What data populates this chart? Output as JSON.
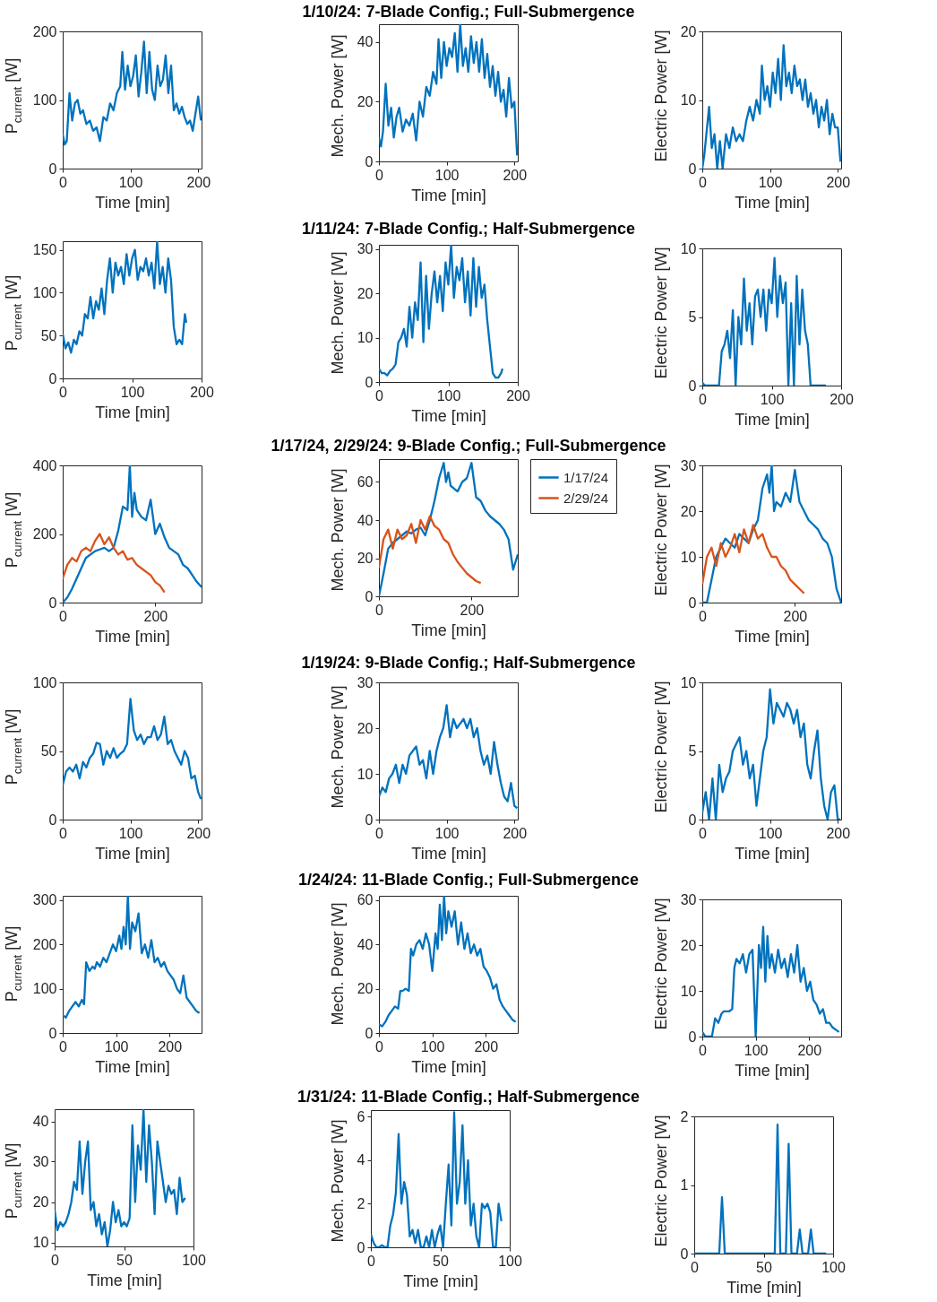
{
  "chart_data": [
    {
      "type": "line",
      "ylabel": "P$_{current}$ [W]",
      "xlabel": "Time [min]",
      "xlim": [
        0,
        205
      ],
      "xticks": [
        0,
        100,
        200
      ],
      "ylim": [
        0,
        200
      ],
      "yticks": [
        0,
        100,
        200
      ],
      "grid": false,
      "legend": false,
      "x": [
        0,
        3,
        6,
        10,
        14,
        18,
        22,
        26,
        30,
        35,
        40,
        45,
        50,
        55,
        60,
        65,
        70,
        75,
        80,
        85,
        88,
        92,
        96,
        100,
        104,
        108,
        112,
        116,
        120,
        124,
        128,
        132,
        136,
        140,
        144,
        148,
        152,
        156,
        160,
        164,
        168,
        172,
        176,
        180,
        184,
        188,
        192,
        196,
        200,
        204
      ],
      "series": [
        {
          "color": "#0072bd",
          "values": [
            50,
            35,
            40,
            110,
            70,
            95,
            100,
            80,
            85,
            65,
            70,
            55,
            60,
            40,
            75,
            70,
            95,
            85,
            110,
            120,
            170,
            115,
            150,
            120,
            135,
            165,
            105,
            140,
            185,
            110,
            170,
            115,
            100,
            150,
            120,
            130,
            165,
            110,
            150,
            85,
            95,
            80,
            90,
            75,
            65,
            70,
            55,
            80,
            105,
            70
          ]
        }
      ]
    },
    {
      "type": "line",
      "title": "1/10/24: 7-Blade Config.; Full-Submergence",
      "ylabel": "Mech. Power [W]",
      "xlabel": "Time [min]",
      "xlim": [
        0,
        205
      ],
      "xticks": [
        0,
        100,
        200
      ],
      "ylim": [
        0,
        46
      ],
      "yticks": [
        0,
        20,
        40
      ],
      "grid": false,
      "legend": false,
      "x": [
        0,
        3,
        6,
        10,
        14,
        18,
        22,
        26,
        30,
        35,
        40,
        45,
        50,
        55,
        60,
        65,
        70,
        75,
        80,
        85,
        88,
        92,
        96,
        100,
        104,
        108,
        112,
        116,
        120,
        124,
        128,
        132,
        136,
        140,
        144,
        148,
        152,
        156,
        160,
        164,
        168,
        172,
        176,
        180,
        184,
        188,
        192,
        196,
        200,
        204
      ],
      "series": [
        {
          "color": "#0072bd",
          "values": [
            8,
            5,
            10,
            26,
            12,
            18,
            8,
            15,
            18,
            10,
            14,
            12,
            16,
            7,
            20,
            15,
            25,
            22,
            30,
            26,
            41,
            28,
            40,
            32,
            38,
            35,
            43,
            30,
            46,
            32,
            38,
            30,
            42,
            33,
            40,
            30,
            41,
            28,
            36,
            25,
            32,
            22,
            30,
            20,
            24,
            15,
            28,
            18,
            20,
            2
          ]
        }
      ]
    },
    {
      "type": "line",
      "ylabel": "Electric Power [W]",
      "xlabel": "Time [min]",
      "xlim": [
        0,
        205
      ],
      "xticks": [
        0,
        100,
        200
      ],
      "ylim": [
        0,
        20
      ],
      "yticks": [
        0,
        10,
        20
      ],
      "grid": false,
      "legend": false,
      "x": [
        0,
        3,
        6,
        10,
        14,
        18,
        22,
        26,
        30,
        35,
        40,
        45,
        50,
        55,
        60,
        65,
        70,
        75,
        80,
        85,
        88,
        92,
        96,
        100,
        104,
        108,
        112,
        116,
        120,
        124,
        128,
        132,
        136,
        140,
        144,
        148,
        152,
        156,
        160,
        164,
        168,
        172,
        176,
        180,
        184,
        188,
        192,
        196,
        200,
        204
      ],
      "series": [
        {
          "color": "#0072bd",
          "values": [
            0,
            2,
            5,
            9,
            3,
            5,
            0,
            4,
            0,
            5,
            3,
            6,
            4,
            5,
            4,
            7,
            9,
            7,
            10,
            8,
            15,
            10,
            12,
            9,
            14,
            11,
            16,
            10,
            18,
            12,
            14,
            11,
            15,
            12,
            13,
            10,
            13,
            9,
            11,
            8,
            10,
            6,
            9,
            7,
            10,
            5,
            8,
            6,
            6,
            1
          ]
        }
      ]
    },
    {
      "type": "line",
      "ylabel": "P$_{current}$ [W]",
      "xlabel": "Time [min]",
      "xlim": [
        0,
        200
      ],
      "xticks": [
        0,
        100,
        200
      ],
      "ylim": [
        0,
        160
      ],
      "yticks": [
        0,
        50,
        100,
        150
      ],
      "grid": false,
      "legend": false,
      "x": [
        0,
        4,
        8,
        12,
        16,
        20,
        24,
        28,
        32,
        36,
        40,
        44,
        48,
        52,
        56,
        60,
        64,
        68,
        72,
        76,
        80,
        84,
        88,
        92,
        96,
        100,
        104,
        108,
        112,
        116,
        120,
        124,
        128,
        132,
        136,
        140,
        144,
        148,
        152,
        156,
        160,
        164,
        168,
        172,
        176,
        178
      ],
      "series": [
        {
          "color": "#0072bd",
          "values": [
            52,
            35,
            42,
            30,
            45,
            40,
            55,
            50,
            75,
            70,
            95,
            70,
            90,
            80,
            105,
            75,
            115,
            140,
            100,
            135,
            120,
            130,
            110,
            145,
            120,
            140,
            150,
            115,
            130,
            125,
            140,
            120,
            135,
            105,
            160,
            110,
            130,
            100,
            140,
            115,
            60,
            40,
            45,
            40,
            75,
            65
          ]
        }
      ]
    },
    {
      "type": "line",
      "title": "1/11/24: 7-Blade Config.; Half-Submergence",
      "ylabel": "Mech. Power [W]",
      "xlabel": "Time [min]",
      "xlim": [
        0,
        200
      ],
      "xticks": [
        0,
        100,
        200
      ],
      "ylim": [
        0,
        31
      ],
      "yticks": [
        0,
        10,
        20,
        30
      ],
      "grid": false,
      "legend": false,
      "x": [
        0,
        4,
        8,
        12,
        16,
        20,
        24,
        28,
        32,
        36,
        40,
        44,
        48,
        52,
        56,
        60,
        64,
        68,
        72,
        76,
        80,
        84,
        88,
        92,
        96,
        100,
        104,
        108,
        112,
        116,
        120,
        124,
        128,
        132,
        136,
        140,
        144,
        148,
        152,
        156,
        160,
        164,
        168,
        172,
        176,
        178
      ],
      "series": [
        {
          "color": "#0072bd",
          "values": [
            3,
            2,
            2,
            1.5,
            2.5,
            3,
            4,
            9,
            10,
            12,
            8,
            17,
            10,
            18,
            14,
            27,
            9,
            24,
            12,
            20,
            25,
            18,
            24,
            16,
            27,
            22,
            31,
            19,
            26,
            23,
            28,
            18,
            25,
            15,
            28,
            17,
            26,
            19,
            22,
            14,
            8,
            2,
            1,
            1,
            2,
            3
          ]
        }
      ]
    },
    {
      "type": "line",
      "ylabel": "Electric Power [W]",
      "xlabel": "Time [min]",
      "xlim": [
        0,
        200
      ],
      "xticks": [
        0,
        100,
        200
      ],
      "ylim": [
        0,
        10
      ],
      "yticks": [
        0,
        5,
        10
      ],
      "grid": false,
      "legend": false,
      "x": [
        0,
        4,
        8,
        12,
        16,
        20,
        24,
        28,
        32,
        36,
        40,
        44,
        48,
        52,
        56,
        60,
        64,
        68,
        72,
        76,
        80,
        84,
        88,
        92,
        96,
        100,
        104,
        108,
        112,
        116,
        120,
        124,
        128,
        132,
        136,
        140,
        144,
        148,
        152,
        156,
        160,
        164,
        168,
        172,
        176,
        178
      ],
      "series": [
        {
          "color": "#0072bd",
          "values": [
            0.2,
            0,
            0,
            0,
            0,
            0,
            0,
            2.5,
            3,
            4,
            2,
            5.5,
            0,
            5,
            3,
            7.8,
            4,
            6,
            3,
            6.5,
            7,
            5,
            7,
            4,
            7,
            6,
            9.3,
            5,
            8,
            6,
            7.5,
            0,
            6,
            0,
            8,
            3,
            7,
            4,
            3,
            0,
            0,
            0,
            0,
            0,
            0,
            0
          ]
        }
      ]
    },
    {
      "type": "line",
      "ylabel": "P$_{current}$ [W]",
      "xlabel": "Time [min]",
      "xlim": [
        0,
        300
      ],
      "xticks": [
        0,
        200
      ],
      "ylim": [
        0,
        400
      ],
      "yticks": [
        0,
        200,
        400
      ],
      "grid": false,
      "legend": false,
      "series": [
        {
          "color": "#0072bd",
          "x": [
            0,
            10,
            20,
            30,
            40,
            50,
            60,
            70,
            80,
            90,
            100,
            110,
            120,
            130,
            140,
            145,
            150,
            155,
            160,
            170,
            180,
            190,
            200,
            210,
            220,
            230,
            240,
            250,
            260,
            270,
            280,
            290,
            300
          ],
          "values": [
            0,
            15,
            40,
            70,
            100,
            130,
            140,
            150,
            155,
            160,
            150,
            160,
            210,
            280,
            270,
            400,
            250,
            320,
            270,
            250,
            240,
            300,
            200,
            230,
            190,
            160,
            150,
            140,
            110,
            100,
            80,
            60,
            45
          ]
        },
        {
          "color": "#d95319",
          "x": [
            0,
            10,
            20,
            30,
            40,
            50,
            60,
            70,
            80,
            90,
            100,
            110,
            120,
            130,
            140,
            150,
            160,
            170,
            180,
            190,
            200,
            210,
            220
          ],
          "values": [
            70,
            110,
            130,
            120,
            150,
            160,
            150,
            180,
            200,
            170,
            190,
            160,
            140,
            150,
            125,
            130,
            110,
            100,
            90,
            80,
            60,
            50,
            30
          ]
        }
      ]
    },
    {
      "type": "line",
      "title": "1/17/24, 2/29/24: 9-Blade Config.; Full-Submergence",
      "ylabel": "Mech. Power [W]",
      "xlabel": "Time [min]",
      "xlim": [
        0,
        300
      ],
      "xticks": [
        0,
        200
      ],
      "ylim": [
        0,
        72
      ],
      "yticks": [
        0,
        20,
        40,
        60
      ],
      "grid": false,
      "legend": "right",
      "series": [
        {
          "name": "1/17/24",
          "color": "#0072bd",
          "x": [
            0,
            10,
            20,
            30,
            40,
            50,
            60,
            70,
            80,
            90,
            100,
            110,
            120,
            130,
            140,
            145,
            150,
            155,
            160,
            170,
            180,
            190,
            200,
            210,
            220,
            230,
            240,
            250,
            260,
            270,
            280,
            290,
            300
          ],
          "values": [
            0,
            12,
            25,
            28,
            30,
            32,
            34,
            33,
            35,
            36,
            32,
            40,
            50,
            62,
            70,
            60,
            65,
            58,
            57,
            55,
            60,
            62,
            70,
            52,
            50,
            45,
            42,
            40,
            38,
            35,
            30,
            14,
            22
          ]
        },
        {
          "name": "2/29/24",
          "color": "#d95319",
          "x": [
            0,
            10,
            20,
            30,
            40,
            50,
            60,
            70,
            80,
            90,
            100,
            110,
            120,
            130,
            140,
            150,
            160,
            170,
            180,
            190,
            200,
            210,
            220
          ],
          "values": [
            15,
            30,
            35,
            25,
            35,
            30,
            32,
            38,
            28,
            40,
            35,
            42,
            37,
            35,
            30,
            28,
            22,
            18,
            15,
            12,
            10,
            8,
            7
          ]
        }
      ]
    },
    {
      "type": "line",
      "ylabel": "Electric Power [W]",
      "xlabel": "Time [min]",
      "xlim": [
        0,
        300
      ],
      "xticks": [
        0,
        200
      ],
      "ylim": [
        0,
        30
      ],
      "yticks": [
        0,
        10,
        20,
        30
      ],
      "grid": false,
      "legend": false,
      "series": [
        {
          "color": "#0072bd",
          "x": [
            0,
            10,
            20,
            30,
            40,
            50,
            60,
            70,
            80,
            90,
            100,
            110,
            120,
            130,
            140,
            145,
            150,
            155,
            160,
            170,
            180,
            190,
            200,
            210,
            220,
            230,
            240,
            250,
            260,
            270,
            280,
            290,
            300
          ],
          "values": [
            0,
            0,
            5,
            10,
            12,
            14,
            13,
            12,
            15,
            14,
            13,
            16,
            18,
            25,
            28,
            24,
            30,
            20,
            22,
            21,
            24,
            22,
            29,
            22,
            20,
            18,
            17,
            16,
            14,
            13,
            10,
            3,
            0
          ]
        },
        {
          "color": "#d95319",
          "x": [
            0,
            10,
            20,
            30,
            40,
            50,
            60,
            70,
            80,
            90,
            100,
            110,
            120,
            130,
            140,
            150,
            160,
            170,
            180,
            190,
            200,
            210,
            220
          ],
          "values": [
            4,
            10,
            12,
            8,
            13,
            10,
            12,
            15,
            11,
            16,
            13,
            17,
            14,
            15,
            12,
            10,
            10,
            8,
            7,
            5,
            4,
            3,
            2
          ]
        }
      ]
    },
    {
      "type": "line",
      "ylabel": "P$_{current}$ [W]",
      "xlabel": "Time [min]",
      "xlim": [
        0,
        205
      ],
      "xticks": [
        0,
        100,
        200
      ],
      "ylim": [
        0,
        100
      ],
      "yticks": [
        0,
        50,
        100
      ],
      "grid": false,
      "legend": false,
      "x": [
        0,
        5,
        10,
        15,
        20,
        25,
        30,
        35,
        40,
        45,
        50,
        55,
        60,
        65,
        70,
        75,
        80,
        85,
        90,
        95,
        100,
        105,
        110,
        115,
        120,
        125,
        130,
        135,
        140,
        145,
        150,
        155,
        160,
        165,
        170,
        175,
        180,
        185,
        190,
        195,
        200,
        204
      ],
      "series": [
        {
          "color": "#0072bd",
          "values": [
            25,
            35,
            38,
            35,
            40,
            30,
            42,
            38,
            45,
            48,
            56,
            55,
            40,
            50,
            45,
            52,
            45,
            48,
            50,
            55,
            88,
            65,
            58,
            62,
            55,
            60,
            60,
            68,
            58,
            62,
            75,
            55,
            58,
            50,
            45,
            40,
            50,
            45,
            30,
            32,
            20,
            15
          ]
        }
      ]
    },
    {
      "type": "line",
      "title": "1/19/24: 9-Blade Config.; Half-Submergence",
      "ylabel": "Mech. Power [W]",
      "xlabel": "Time [min]",
      "xlim": [
        0,
        205
      ],
      "xticks": [
        0,
        100,
        200
      ],
      "ylim": [
        0,
        30
      ],
      "yticks": [
        0,
        10,
        20,
        30
      ],
      "grid": false,
      "legend": false,
      "x": [
        0,
        5,
        10,
        15,
        20,
        25,
        30,
        35,
        40,
        45,
        50,
        55,
        60,
        65,
        70,
        75,
        80,
        85,
        90,
        95,
        100,
        105,
        110,
        115,
        120,
        125,
        130,
        135,
        140,
        145,
        150,
        155,
        160,
        165,
        170,
        175,
        180,
        185,
        190,
        195,
        200,
        204
      ],
      "series": [
        {
          "color": "#0072bd",
          "values": [
            5,
            7,
            6,
            9,
            10,
            12,
            8,
            12,
            10,
            14,
            15,
            16,
            12,
            13,
            9,
            15,
            10,
            15,
            18,
            20,
            25,
            18,
            22,
            20,
            21,
            22,
            20,
            22,
            18,
            20,
            15,
            12,
            14,
            10,
            17,
            12,
            8,
            5,
            4,
            8,
            3,
            2.5
          ]
        }
      ]
    },
    {
      "type": "line",
      "ylabel": "Electric Power [W]",
      "xlabel": "Time [min]",
      "xlim": [
        0,
        205
      ],
      "xticks": [
        0,
        100,
        200
      ],
      "ylim": [
        0,
        10
      ],
      "yticks": [
        0,
        5,
        10
      ],
      "grid": false,
      "legend": false,
      "x": [
        0,
        5,
        10,
        15,
        20,
        25,
        30,
        35,
        40,
        45,
        50,
        55,
        60,
        65,
        70,
        75,
        80,
        85,
        90,
        95,
        100,
        105,
        110,
        115,
        120,
        125,
        130,
        135,
        140,
        145,
        150,
        155,
        160,
        165,
        170,
        175,
        180,
        185,
        190,
        195,
        200,
        204
      ],
      "series": [
        {
          "color": "#0072bd",
          "values": [
            0.5,
            2,
            0,
            3,
            0,
            4,
            2,
            3,
            3.5,
            5,
            5.5,
            6,
            4,
            5,
            3,
            4,
            1,
            3,
            5,
            6,
            9.5,
            7,
            8.5,
            8,
            7.5,
            8.5,
            8,
            7,
            8,
            6,
            7,
            4,
            3,
            5,
            6.5,
            3,
            1,
            0,
            2,
            2.5,
            0,
            0
          ]
        }
      ]
    },
    {
      "type": "line",
      "ylabel": "P$_{current}$ [W]",
      "xlabel": "Time [min]",
      "xlim": [
        0,
        260
      ],
      "xticks": [
        0,
        100,
        200
      ],
      "ylim": [
        0,
        310
      ],
      "yticks": [
        0,
        100,
        200,
        300
      ],
      "grid": false,
      "legend": false,
      "x": [
        0,
        6,
        12,
        18,
        24,
        30,
        36,
        40,
        44,
        50,
        56,
        60,
        64,
        70,
        76,
        82,
        88,
        94,
        100,
        106,
        110,
        114,
        118,
        122,
        126,
        130,
        136,
        142,
        148,
        154,
        160,
        166,
        172,
        178,
        184,
        190,
        196,
        202,
        208,
        214,
        220,
        226,
        232,
        238,
        244,
        250,
        256
      ],
      "series": [
        {
          "color": "#0072bd",
          "values": [
            40,
            35,
            50,
            60,
            70,
            60,
            75,
            65,
            160,
            140,
            150,
            145,
            160,
            150,
            170,
            160,
            180,
            200,
            185,
            220,
            190,
            240,
            200,
            310,
            190,
            250,
            230,
            270,
            180,
            200,
            170,
            210,
            160,
            170,
            150,
            160,
            140,
            130,
            120,
            100,
            90,
            130,
            80,
            70,
            60,
            50,
            45
          ]
        }
      ]
    },
    {
      "type": "line",
      "title": "1/24/24: 11-Blade Config.; Full-Submergence",
      "ylabel": "Mech. Power [W]",
      "xlabel": "Time [min]",
      "xlim": [
        0,
        260
      ],
      "xticks": [
        0,
        100,
        200
      ],
      "ylim": [
        0,
        62
      ],
      "yticks": [
        0,
        20,
        40,
        60
      ],
      "grid": false,
      "legend": false,
      "x": [
        0,
        6,
        12,
        18,
        24,
        30,
        36,
        40,
        44,
        50,
        56,
        60,
        64,
        70,
        76,
        82,
        88,
        94,
        100,
        106,
        110,
        114,
        118,
        122,
        126,
        130,
        136,
        142,
        148,
        154,
        160,
        166,
        172,
        178,
        184,
        190,
        196,
        202,
        208,
        214,
        220,
        226,
        232,
        238,
        244,
        250,
        256
      ],
      "series": [
        {
          "color": "#0072bd",
          "values": [
            4,
            3,
            5,
            8,
            10,
            12,
            11,
            19,
            19,
            20,
            19,
            38,
            35,
            40,
            42,
            38,
            45,
            40,
            28,
            45,
            38,
            58,
            42,
            62,
            45,
            55,
            48,
            55,
            40,
            50,
            38,
            45,
            36,
            40,
            35,
            38,
            30,
            28,
            25,
            20,
            22,
            15,
            12,
            10,
            8,
            6,
            5
          ]
        }
      ]
    },
    {
      "type": "line",
      "ylabel": "Electric Power [W]",
      "xlabel": "Time [min]",
      "xlim": [
        0,
        260
      ],
      "xticks": [
        0,
        100,
        200
      ],
      "ylim": [
        0,
        30
      ],
      "yticks": [
        0,
        10,
        20,
        30
      ],
      "grid": false,
      "legend": false,
      "x": [
        0,
        6,
        12,
        18,
        24,
        30,
        36,
        40,
        44,
        50,
        56,
        60,
        64,
        70,
        76,
        82,
        88,
        94,
        100,
        106,
        110,
        114,
        118,
        122,
        126,
        130,
        136,
        142,
        148,
        154,
        160,
        166,
        172,
        178,
        184,
        190,
        196,
        202,
        208,
        214,
        220,
        226,
        232,
        238,
        244,
        250,
        256
      ],
      "series": [
        {
          "color": "#0072bd",
          "values": [
            1,
            0,
            0,
            0,
            4,
            3,
            5,
            5.5,
            5.5,
            5.5,
            6,
            15,
            17,
            16,
            18,
            14,
            18,
            19,
            0,
            20,
            15,
            24,
            12,
            22,
            15,
            18,
            14,
            19,
            15,
            17,
            13,
            18,
            14,
            20,
            12,
            15,
            10,
            12,
            8,
            7,
            5,
            6,
            3,
            3,
            2,
            1.5,
            1
          ]
        }
      ]
    },
    {
      "type": "line",
      "ylabel": "P$_{current}$ [W]",
      "xlabel": "Time [min]",
      "xlim": [
        0,
        100
      ],
      "xticks": [
        0,
        50,
        100
      ],
      "ylim": [
        9,
        43
      ],
      "yticks": [
        10,
        20,
        30,
        40
      ],
      "grid": false,
      "legend": false,
      "x": [
        0,
        2,
        4,
        6,
        8,
        10,
        12,
        14,
        16,
        18,
        20,
        22,
        24,
        26,
        28,
        30,
        32,
        34,
        36,
        38,
        40,
        42,
        44,
        46,
        48,
        50,
        52,
        54,
        56,
        58,
        60,
        62,
        64,
        66,
        68,
        70,
        72,
        74,
        76,
        78,
        80,
        82,
        84,
        86,
        88,
        90,
        92,
        94
      ],
      "series": [
        {
          "color": "#0072bd",
          "values": [
            18,
            13,
            15,
            14,
            15,
            17,
            20,
            25,
            23,
            35,
            22,
            30,
            35,
            18,
            20,
            14,
            17,
            12,
            15,
            9,
            13,
            20,
            15,
            18,
            14,
            15,
            14,
            16,
            39,
            20,
            34,
            28,
            43,
            25,
            39,
            30,
            17,
            35,
            30,
            25,
            20,
            24,
            22,
            23,
            17,
            26,
            20,
            21
          ]
        }
      ]
    },
    {
      "type": "line",
      "title": "1/31/24: 11-Blade Config.; Half-Submergence",
      "ylabel": "Mech. Power [W]",
      "xlabel": "Time [min]",
      "xlim": [
        0,
        100
      ],
      "xticks": [
        0,
        50,
        100
      ],
      "ylim": [
        0,
        6.3
      ],
      "yticks": [
        0,
        2,
        4,
        6
      ],
      "grid": false,
      "legend": false,
      "x": [
        0,
        2,
        4,
        6,
        8,
        10,
        12,
        14,
        16,
        18,
        20,
        22,
        24,
        26,
        28,
        30,
        32,
        34,
        36,
        38,
        40,
        42,
        44,
        46,
        48,
        50,
        52,
        54,
        56,
        58,
        60,
        62,
        64,
        66,
        68,
        70,
        72,
        74,
        76,
        78,
        80,
        82,
        84,
        86,
        88,
        90,
        92,
        94
      ],
      "series": [
        {
          "color": "#0072bd",
          "values": [
            0.6,
            0.2,
            0,
            0,
            0.1,
            0,
            0,
            1,
            1.5,
            2.5,
            5.2,
            2,
            3,
            2.4,
            0.5,
            0.8,
            0.2,
            0.8,
            0,
            0,
            0.5,
            0,
            0.8,
            0,
            0.6,
            1,
            0,
            2,
            3.8,
            1,
            6.2,
            2,
            3,
            5.6,
            2,
            4,
            1,
            2,
            0.5,
            0,
            2,
            1.8,
            2,
            1.6,
            0,
            0,
            2,
            1.2
          ]
        }
      ]
    },
    {
      "type": "line",
      "ylabel": "Electric Power [W]",
      "xlabel": "Time [min]",
      "xlim": [
        0,
        100
      ],
      "xticks": [
        0,
        50,
        100
      ],
      "ylim": [
        0,
        2
      ],
      "yticks": [
        0,
        1,
        2
      ],
      "grid": false,
      "legend": false,
      "x": [
        0,
        18,
        20,
        22,
        58,
        60,
        62,
        66,
        68,
        70,
        74,
        76,
        78,
        82,
        84,
        86,
        95
      ],
      "series": [
        {
          "color": "#0072bd",
          "values": [
            0,
            0,
            0.82,
            0,
            0,
            1.88,
            0,
            0,
            1.6,
            0,
            0,
            0.35,
            0,
            0,
            0.35,
            0,
            0
          ]
        }
      ]
    }
  ]
}
